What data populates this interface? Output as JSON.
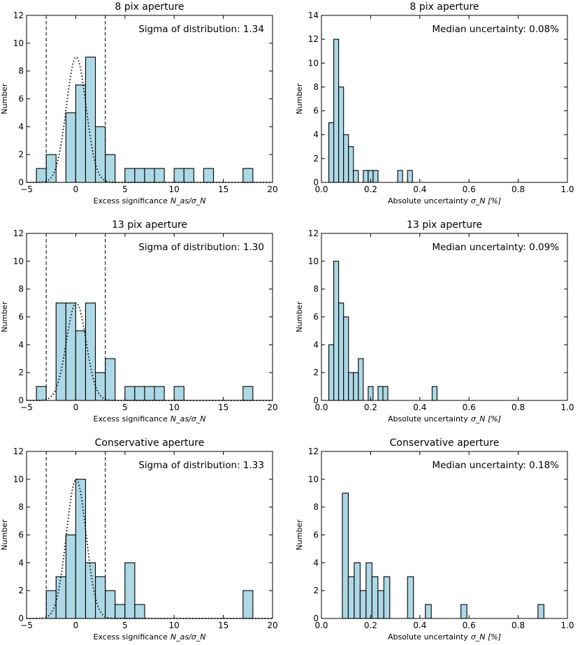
{
  "chart_data": [
    {
      "id": "sig8",
      "type": "histogram",
      "title": "8 pix aperture",
      "xlabel": "Excess significance",
      "xlabel_math": "N_as/σ_N",
      "ylabel": "Number",
      "xlim": [
        -5,
        20
      ],
      "ylim": [
        0,
        12
      ],
      "xticks": [
        -5,
        0,
        5,
        10,
        15,
        20
      ],
      "yticks": [
        0,
        2,
        4,
        6,
        8,
        10,
        12
      ],
      "bin_start": -4,
      "bin_width": 1,
      "counts": [
        1,
        2,
        0,
        5,
        7,
        9,
        4,
        2,
        0,
        1,
        1,
        1,
        1,
        0,
        1,
        1,
        0,
        1,
        0,
        0,
        0,
        1
      ],
      "annotation": "Sigma of distribution: 1.34",
      "gaussian": {
        "mu": 0.05,
        "sigma": 1.0,
        "peak": 9
      },
      "vlines": [
        -3,
        3
      ]
    },
    {
      "id": "unc8",
      "type": "histogram",
      "title": "8 pix aperture",
      "xlabel": "Absolute uncertainty",
      "xlabel_math": "σ_N [%]",
      "ylabel": "Number",
      "xlim": [
        0,
        1
      ],
      "ylim": [
        0,
        14
      ],
      "xticks": [
        0.0,
        0.2,
        0.4,
        0.6,
        0.8,
        1.0
      ],
      "yticks": [
        0,
        2,
        4,
        6,
        8,
        10,
        12,
        14
      ],
      "bin_start": 0.03,
      "bin_width": 0.02,
      "counts": [
        5,
        12,
        8,
        4,
        3,
        1,
        0,
        1,
        1,
        1,
        0,
        0,
        0,
        0,
        1,
        0,
        1
      ],
      "annotation": "Median uncertainty: 0.08%"
    },
    {
      "id": "sig13",
      "type": "histogram",
      "title": "13 pix aperture",
      "xlabel": "Excess significance",
      "xlabel_math": "N_as/σ_N",
      "ylabel": "Number",
      "xlim": [
        -5,
        20
      ],
      "ylim": [
        0,
        12
      ],
      "xticks": [
        -5,
        0,
        5,
        10,
        15,
        20
      ],
      "yticks": [
        0,
        2,
        4,
        6,
        8,
        10,
        12
      ],
      "bin_start": -4,
      "bin_width": 1,
      "counts": [
        1,
        0,
        7,
        7,
        5,
        7,
        2,
        3,
        0,
        1,
        1,
        1,
        1,
        0,
        1,
        0,
        0,
        0,
        0,
        0,
        0,
        1
      ],
      "annotation": "Sigma of distribution: 1.30",
      "gaussian": {
        "mu": 0.05,
        "sigma": 1.0,
        "peak": 7
      },
      "vlines": [
        -3,
        3
      ]
    },
    {
      "id": "unc13",
      "type": "histogram",
      "title": "13 pix aperture",
      "xlabel": "Absolute uncertainty",
      "xlabel_math": "σ_N [%]",
      "ylabel": "Number",
      "xlim": [
        0,
        1
      ],
      "ylim": [
        0,
        12
      ],
      "xticks": [
        0.0,
        0.2,
        0.4,
        0.6,
        0.8,
        1.0
      ],
      "yticks": [
        0,
        2,
        4,
        6,
        8,
        10,
        12
      ],
      "bin_start": 0.03,
      "bin_width": 0.02,
      "counts": [
        4,
        10,
        7,
        6,
        2,
        2,
        3,
        0,
        1,
        0,
        1,
        1,
        0,
        0,
        0,
        0,
        0,
        0,
        0,
        0,
        0,
        1
      ],
      "annotation": "Median uncertainty: 0.09%"
    },
    {
      "id": "sigcons",
      "type": "histogram",
      "title": "Conservative aperture",
      "xlabel": "Excess significance",
      "xlabel_math": "N_as/σ_N",
      "ylabel": "Number",
      "xlim": [
        -5,
        20
      ],
      "ylim": [
        0,
        12
      ],
      "xticks": [
        -5,
        0,
        5,
        10,
        15,
        20
      ],
      "yticks": [
        0,
        2,
        4,
        6,
        8,
        10,
        12
      ],
      "bin_start": -3,
      "bin_width": 1,
      "counts": [
        2,
        3,
        6,
        10,
        4,
        3,
        2,
        1,
        4,
        1,
        0,
        0,
        0,
        0,
        0,
        0,
        0,
        0,
        0,
        0,
        2
      ],
      "annotation": "Sigma of distribution: 1.33",
      "gaussian": {
        "mu": 0.05,
        "sigma": 1.0,
        "peak": 10
      },
      "vlines": [
        -3,
        3
      ]
    },
    {
      "id": "unccons",
      "type": "histogram",
      "title": "Conservative aperture",
      "xlabel": "Absolute uncertainty",
      "xlabel_math": "σ_N [%]",
      "ylabel": "Number",
      "xlim": [
        0,
        1
      ],
      "ylim": [
        0,
        12
      ],
      "xticks": [
        0.0,
        0.2,
        0.4,
        0.6,
        0.8,
        1.0
      ],
      "yticks": [
        0,
        2,
        4,
        6,
        8,
        10,
        12
      ],
      "bin_start": 0.085,
      "bin_width": 0.0241,
      "counts": [
        9,
        3,
        4,
        2,
        4,
        3,
        2,
        3,
        0,
        0,
        0,
        3,
        0,
        0,
        1,
        0,
        0,
        0,
        0,
        0,
        1,
        0,
        0,
        0,
        0,
        0,
        0,
        0,
        0,
        0,
        0,
        0,
        0,
        1
      ],
      "annotation": "Median uncertainty: 0.18%"
    }
  ]
}
